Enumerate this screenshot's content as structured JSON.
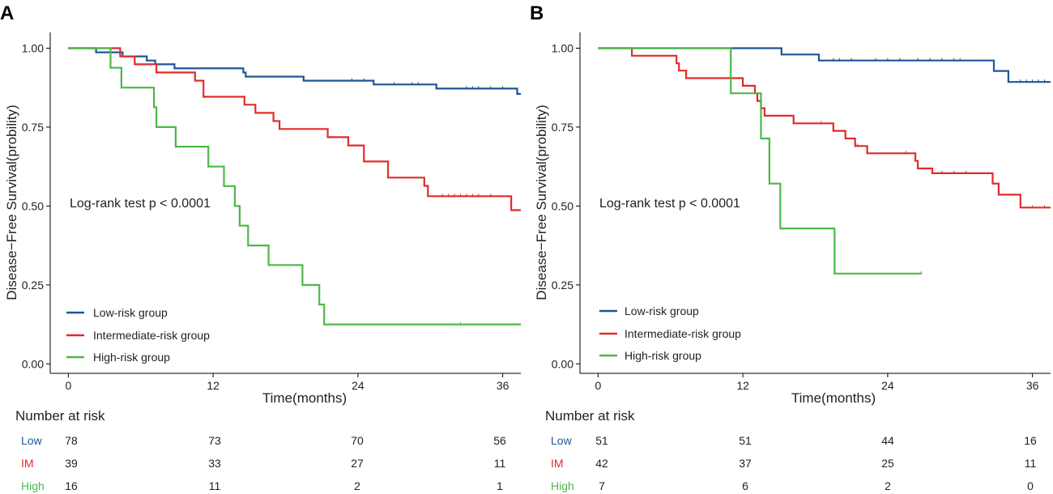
{
  "chart_data": [
    {
      "type": "line",
      "panel": "A",
      "xlabel": "Time(months)",
      "ylabel": "Disease−Free Survival(probility)",
      "xticks": [
        "0",
        "12",
        "24",
        "36"
      ],
      "xtick_values": [
        0,
        12,
        24,
        36
      ],
      "yticks": [
        "0.00",
        "0.25",
        "0.50",
        "0.75",
        "1.00"
      ],
      "ytick_values": [
        0,
        0.25,
        0.5,
        0.75,
        1.0
      ],
      "xlim": [
        -1.5,
        37.5
      ],
      "ylim": [
        -0.03,
        1.05
      ],
      "annotation": "Log-rank test p < 0.0001",
      "legend_position": "bottom-left",
      "series": [
        {
          "name": "Low-risk group",
          "color": "#1f5596",
          "steps": [
            [
              0,
              1.0
            ],
            [
              2.3,
              0.987
            ],
            [
              4.5,
              0.974
            ],
            [
              6.5,
              0.961
            ],
            [
              7.2,
              0.949
            ],
            [
              8.8,
              0.936
            ],
            [
              11.4,
              0.936
            ],
            [
              14.5,
              0.923
            ],
            [
              14.7,
              0.91
            ],
            [
              19.5,
              0.897
            ],
            [
              22.5,
              0.897
            ],
            [
              25.3,
              0.885
            ],
            [
              30.5,
              0.872
            ],
            [
              37.2,
              0.872
            ],
            [
              37.2,
              0.855
            ],
            [
              37.5,
              0.855
            ]
          ],
          "censors": [
            23.5,
            24.5,
            27,
            28.5,
            29,
            33,
            33.5,
            34,
            35,
            36
          ]
        },
        {
          "name": "Intermediate-risk group",
          "color": "#e12b2b",
          "steps": [
            [
              0,
              1.0
            ],
            [
              4.3,
              0.974
            ],
            [
              5.5,
              0.949
            ],
            [
              7.3,
              0.923
            ],
            [
              10.5,
              0.897
            ],
            [
              11.2,
              0.846
            ],
            [
              14.6,
              0.821
            ],
            [
              15.5,
              0.795
            ],
            [
              17,
              0.769
            ],
            [
              17.5,
              0.744
            ],
            [
              21.5,
              0.718
            ],
            [
              23.2,
              0.692
            ],
            [
              24.5,
              0.641
            ],
            [
              26.5,
              0.59
            ],
            [
              29.5,
              0.564
            ],
            [
              29.8,
              0.538
            ],
            [
              29.8,
              0.531
            ],
            [
              36.7,
              0.531
            ],
            [
              36.7,
              0.487
            ],
            [
              37.5,
              0.487
            ]
          ],
          "censors": [
            31,
            31.5,
            32,
            32.5,
            33,
            33.5,
            34,
            35
          ]
        },
        {
          "name": "High-risk group",
          "color": "#4db848",
          "steps": [
            [
              0,
              1.0
            ],
            [
              3.5,
              0.938
            ],
            [
              4.4,
              0.875
            ],
            [
              7.0,
              0.875
            ],
            [
              7.1,
              0.813
            ],
            [
              7.3,
              0.75
            ],
            [
              8.9,
              0.688
            ],
            [
              11.6,
              0.625
            ],
            [
              12.9,
              0.563
            ],
            [
              13.8,
              0.5
            ],
            [
              14.2,
              0.438
            ],
            [
              14.9,
              0.375
            ],
            [
              16.6,
              0.313
            ],
            [
              19.4,
              0.25
            ],
            [
              20.8,
              0.188
            ],
            [
              21.2,
              0.125
            ],
            [
              37.5,
              0.125
            ]
          ],
          "censors": [
            32.5
          ]
        }
      ],
      "risk_table": {
        "title": "Number at risk",
        "columns": [
          0,
          12,
          24,
          36
        ],
        "rows": [
          {
            "label": "Low",
            "color": "#1f5596",
            "values": [
              "78",
              "73",
              "70",
              "56"
            ]
          },
          {
            "label": "IM",
            "color": "#e12b2b",
            "values": [
              "39",
              "33",
              "27",
              "11"
            ]
          },
          {
            "label": "High",
            "color": "#4db848",
            "values": [
              "16",
              "11",
              "2",
              "1"
            ]
          }
        ]
      }
    },
    {
      "type": "line",
      "panel": "B",
      "xlabel": "Time(months)",
      "ylabel": "Disease−Free Survival(probility)",
      "xticks": [
        "0",
        "12",
        "24",
        "36"
      ],
      "xtick_values": [
        0,
        12,
        24,
        36
      ],
      "yticks": [
        "0.00",
        "0.25",
        "0.50",
        "0.75",
        "1.00"
      ],
      "ytick_values": [
        0,
        0.25,
        0.5,
        0.75,
        1.0
      ],
      "xlim": [
        -1.5,
        37.5
      ],
      "ylim": [
        -0.03,
        1.05
      ],
      "annotation": "Log-rank test p < 0.0001",
      "legend_position": "bottom-left",
      "series": [
        {
          "name": "Low-risk group",
          "color": "#1f5596",
          "steps": [
            [
              0,
              1.0
            ],
            [
              15.2,
              0.98
            ],
            [
              18.3,
              0.961
            ],
            [
              19.5,
              0.961
            ],
            [
              32.8,
              0.928
            ],
            [
              34,
              0.893
            ],
            [
              37.5,
              0.893
            ]
          ],
          "censors": [
            19.5,
            20,
            21,
            23,
            24,
            25,
            26.5,
            27.5,
            28.5,
            29.5,
            30,
            35,
            35.5,
            36,
            36.5,
            37
          ]
        },
        {
          "name": "Intermediate-risk group",
          "color": "#e12b2b",
          "steps": [
            [
              0,
              1.0
            ],
            [
              2.8,
              0.976
            ],
            [
              6.5,
              0.952
            ],
            [
              6.7,
              0.929
            ],
            [
              7.3,
              0.905
            ],
            [
              12,
              0.881
            ],
            [
              13,
              0.857
            ],
            [
              13.2,
              0.833
            ],
            [
              13.5,
              0.81
            ],
            [
              13.8,
              0.786
            ],
            [
              16.2,
              0.762
            ],
            [
              19.5,
              0.738
            ],
            [
              20.5,
              0.714
            ],
            [
              21.3,
              0.69
            ],
            [
              22.3,
              0.667
            ],
            [
              26.3,
              0.643
            ],
            [
              26.5,
              0.619
            ],
            [
              27.7,
              0.604
            ],
            [
              32.7,
              0.571
            ],
            [
              33.2,
              0.536
            ],
            [
              35,
              0.5
            ],
            [
              35,
              0.495
            ],
            [
              37.5,
              0.495
            ]
          ],
          "censors": [
            18.5,
            21.5,
            25.5,
            28.5,
            29.5,
            30.5,
            36,
            37
          ]
        },
        {
          "name": "High-risk group",
          "color": "#4db848",
          "steps": [
            [
              0,
              1.0
            ],
            [
              11,
              0.857
            ],
            [
              13,
              0.857
            ],
            [
              13.5,
              0.714
            ],
            [
              14.2,
              0.571
            ],
            [
              15.1,
              0.429
            ],
            [
              19.6,
              0.429
            ],
            [
              19.6,
              0.286
            ],
            [
              26.8,
              0.286
            ]
          ],
          "censors": [
            26.8
          ]
        }
      ],
      "risk_table": {
        "title": "Number at risk",
        "columns": [
          0,
          12,
          24,
          36
        ],
        "rows": [
          {
            "label": "Low",
            "color": "#1f5596",
            "values": [
              "51",
              "51",
              "44",
              "16"
            ]
          },
          {
            "label": "IM",
            "color": "#e12b2b",
            "values": [
              "42",
              "37",
              "25",
              "11"
            ]
          },
          {
            "label": "High",
            "color": "#4db848",
            "values": [
              "7",
              "6",
              "2",
              "0"
            ]
          }
        ]
      }
    }
  ]
}
